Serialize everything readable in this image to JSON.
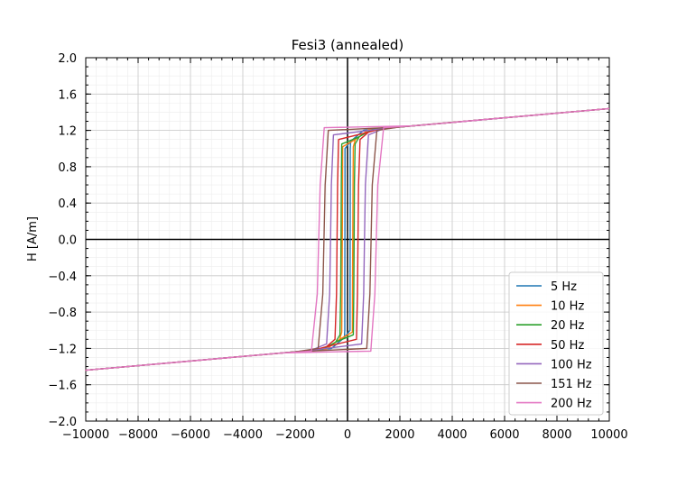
{
  "chart_data": {
    "type": "line",
    "title": "Fesi3 (annealed)",
    "xlabel": "",
    "ylabel": "H [A/m]",
    "xlim": [
      -10000,
      10000
    ],
    "ylim": [
      -2.0,
      2.0
    ],
    "xticks": [
      -10000,
      -8000,
      -6000,
      -4000,
      -2000,
      0,
      2000,
      4000,
      6000,
      8000,
      10000
    ],
    "xtick_labels": [
      "−10000",
      "−8000",
      "−6000",
      "−4000",
      "−2000",
      "0",
      "2000",
      "4000",
      "6000",
      "8000",
      "10000"
    ],
    "yticks": [
      2.0,
      1.6,
      1.2,
      0.8,
      0.4,
      0.0,
      -0.4,
      -0.8,
      -1.2,
      -1.6,
      -2.0
    ],
    "ytick_labels": [
      "2.0",
      "1.6",
      "1.2",
      "0.8",
      "0.4",
      "0.0",
      "−0.4",
      "−0.8",
      "−1.2",
      "−1.6",
      "−2.0"
    ],
    "grid": true,
    "legend_position": "lower-right",
    "series": [
      {
        "name": "5 Hz",
        "color": "#1f77b4",
        "coercive_x": 100,
        "knee_y": 1.0,
        "knee_x": 120
      },
      {
        "name": "10 Hz",
        "color": "#ff7f0e",
        "coercive_x": 200,
        "knee_y": 1.02,
        "knee_x": 300
      },
      {
        "name": "20 Hz",
        "color": "#2ca02c",
        "coercive_x": 250,
        "knee_y": 1.05,
        "knee_x": 450
      },
      {
        "name": "50 Hz",
        "color": "#d62728",
        "coercive_x": 400,
        "knee_y": 1.1,
        "knee_x": 800
      },
      {
        "name": "100 Hz",
        "color": "#9467bd",
        "coercive_x": 650,
        "knee_y": 1.15,
        "knee_x": 1400
      },
      {
        "name": "151 Hz",
        "color": "#8c564b",
        "coercive_x": 900,
        "knee_y": 1.2,
        "knee_x": 2000
      },
      {
        "name": "200 Hz",
        "color": "#e377c2",
        "coercive_x": 1100,
        "knee_y": 1.23,
        "knee_x": 2500
      }
    ],
    "saturation": {
      "x": [
        2500,
        10000
      ],
      "y": [
        1.25,
        1.44
      ]
    }
  }
}
